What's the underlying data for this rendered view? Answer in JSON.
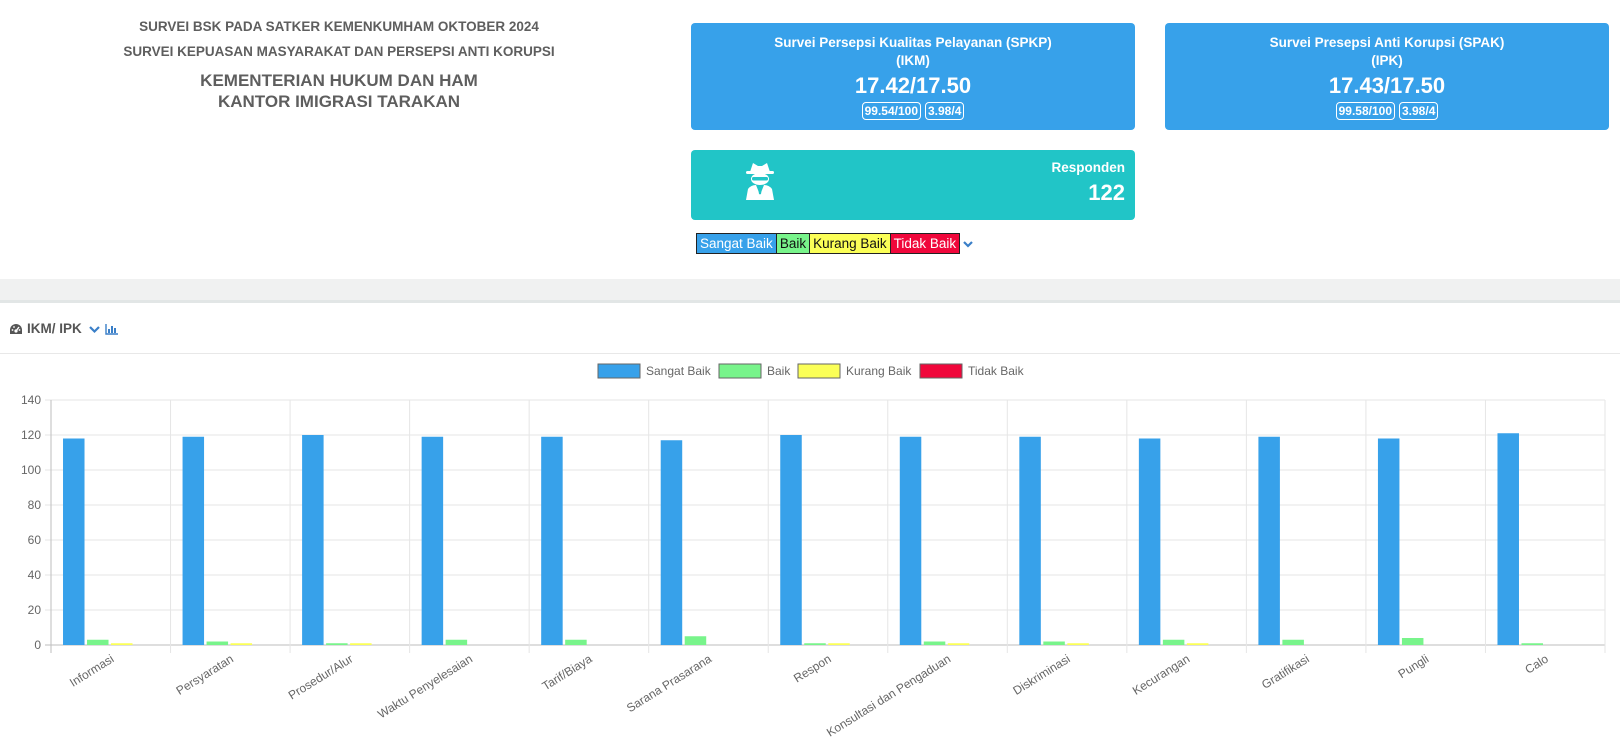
{
  "header": {
    "line1": "SURVEI BSK PADA SATKER KEMENKUMHAM OKTOBER 2024",
    "line2": "SURVEI KEPUASAN MASYARAKAT DAN PERSEPSI ANTI KORUPSI",
    "line3a": "KEMENTERIAN HUKUM DAN HAM",
    "line3b": "KANTOR IMIGRASI TARAKAN"
  },
  "cards": {
    "ikm": {
      "title": "Survei Persepsi Kualitas Pelayanan (SPKP)",
      "subtitle": "(IKM)",
      "score": "17.42/17.50",
      "badge1": "99.54/100",
      "badge2": "3.98/4"
    },
    "ipk": {
      "title": "Survei Presepsi Anti Korupsi (SPAK)",
      "subtitle": "(IPK)",
      "score": "17.43/17.50",
      "badge1": "99.58/100",
      "badge2": "3.98/4"
    },
    "responden": {
      "label": "Responden",
      "value": "122",
      "icon": "user-secret-icon"
    }
  },
  "legend_bar": {
    "sangat_baik": "Sangat Baik",
    "baik": "Baik",
    "kurang_baik": "Kurang Baik",
    "tidak_baik": "Tidak Baik"
  },
  "panel": {
    "title": "IKM/ IPK",
    "icon": "tachometer-icon"
  },
  "colors": {
    "sangat_baik": "#37a1ea",
    "baik": "#78f48b",
    "kurang_baik": "#fbff57",
    "tidak_baik": "#f0073b",
    "card_blue": "#37a1ea",
    "card_teal": "#21c5c7"
  },
  "chart_data": {
    "type": "bar",
    "categories": [
      "Informasi",
      "Persyaratan",
      "Prosedur/Alur",
      "Waktu Penyelesaian",
      "Tarif/Biaya",
      "Sarana Prasarana",
      "Respon",
      "Konsultasi dan Pengaduan",
      "Diskriminasi",
      "Kecurangan",
      "Gratifikasi",
      "Pungli",
      "Calo"
    ],
    "series": [
      {
        "name": "Sangat Baik",
        "color": "#37a1ea",
        "values": [
          118,
          119,
          120,
          119,
          119,
          117,
          120,
          119,
          119,
          118,
          119,
          118,
          121
        ]
      },
      {
        "name": "Baik",
        "color": "#78f48b",
        "values": [
          3,
          2,
          1,
          3,
          3,
          5,
          1,
          2,
          2,
          3,
          3,
          4,
          1
        ]
      },
      {
        "name": "Kurang Baik",
        "color": "#fbff57",
        "values": [
          1,
          1,
          1,
          0,
          0,
          0,
          1,
          1,
          1,
          1,
          0,
          0,
          0
        ]
      },
      {
        "name": "Tidak Baik",
        "color": "#f0073b",
        "values": [
          0,
          0,
          0,
          0,
          0,
          0,
          0,
          0,
          0,
          0,
          0,
          0,
          0
        ]
      }
    ],
    "ylim": [
      0,
      140
    ],
    "yticks": [
      0,
      20,
      40,
      60,
      80,
      100,
      120,
      140
    ],
    "grid": true,
    "legend": "top-center"
  }
}
